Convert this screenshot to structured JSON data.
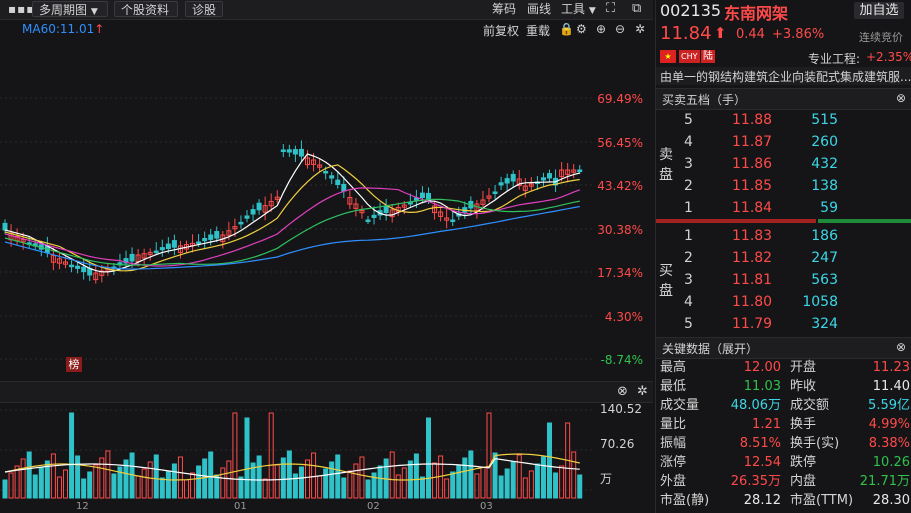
{
  "toolbar": {
    "menu_icon": "more-dots-icon",
    "period": "多周期图",
    "stock_info": "个股资料",
    "diagnose": "诊股",
    "chips": "筹码",
    "draw_line": "画线",
    "tools": "工具"
  },
  "ma": {
    "label": "MA60:11.01"
  },
  "chart_tools": {
    "pre_adjust": "前复权",
    "overlay": "重载"
  },
  "pct_axis": [
    "69.49%",
    "56.45%",
    "43.42%",
    "30.38%",
    "17.34%",
    "4.30%",
    "-8.74%"
  ],
  "vol_axis": [
    "140.52",
    "70.26",
    "万"
  ],
  "bang_badge": "榜",
  "months": [
    "12",
    "01",
    "02",
    "03"
  ],
  "stock": {
    "code": "002135",
    "name": "东南网架",
    "price": "11.84",
    "change": "0.44",
    "change_pct": "+3.86%",
    "add_watch": "加自选",
    "auction": "连续竞价",
    "tag_chy": "CHY",
    "tag_lu": "陆",
    "sector": "专业工程:",
    "sector_pct": "+2.35%",
    "desc": "由单一的钢结构建筑企业向装配式集成建筑服..."
  },
  "book": {
    "title": "买卖五档（手）",
    "sell_label": [
      "卖",
      "盘"
    ],
    "buy_label": [
      "买",
      "盘"
    ],
    "asks": [
      {
        "level": "5",
        "price": "11.88",
        "vol": "515"
      },
      {
        "level": "4",
        "price": "11.87",
        "vol": "260"
      },
      {
        "level": "3",
        "price": "11.86",
        "vol": "432"
      },
      {
        "level": "2",
        "price": "11.85",
        "vol": "138"
      },
      {
        "level": "1",
        "price": "11.84",
        "vol": "59"
      }
    ],
    "bids": [
      {
        "level": "1",
        "price": "11.83",
        "vol": "186"
      },
      {
        "level": "2",
        "price": "11.82",
        "vol": "247"
      },
      {
        "level": "3",
        "price": "11.81",
        "vol": "563"
      },
      {
        "level": "4",
        "price": "11.80",
        "vol": "1058"
      },
      {
        "level": "5",
        "price": "11.79",
        "vol": "324"
      }
    ]
  },
  "key": {
    "title": "关键数据（展开）",
    "rows": [
      {
        "l1": "最高",
        "v1": "12.00",
        "l2": "开盘",
        "v2": "11.23"
      },
      {
        "l1": "最低",
        "v1": "11.03",
        "l2": "昨收",
        "v2": "11.40"
      },
      {
        "l1": "成交量",
        "v1": "48.06万",
        "l2": "成交额",
        "v2": "5.59亿"
      },
      {
        "l1": "量比",
        "v1": "1.21",
        "l2": "换手",
        "v2": "4.99%"
      },
      {
        "l1": "振幅",
        "v1": "8.51%",
        "l2": "换手(实)",
        "v2": "8.38%"
      },
      {
        "l1": "涨停",
        "v1": "12.54",
        "l2": "跌停",
        "v2": "10.26"
      },
      {
        "l1": "外盘",
        "v1": "26.35万",
        "l2": "内盘",
        "v2": "21.71万"
      },
      {
        "l1": "市盈(静)",
        "v1": "28.12",
        "l2": "市盈(TTM)",
        "v2": "28.30"
      }
    ]
  },
  "colors": {
    "up": "#ff4a4a",
    "down": "#2fc24c",
    "ma5": "#ffffff",
    "ma10": "#f0d040",
    "ma20": "#e040c0",
    "ma30": "#30c060",
    "ma60": "#2f8fff",
    "cyan": "#3dd6e6"
  }
}
